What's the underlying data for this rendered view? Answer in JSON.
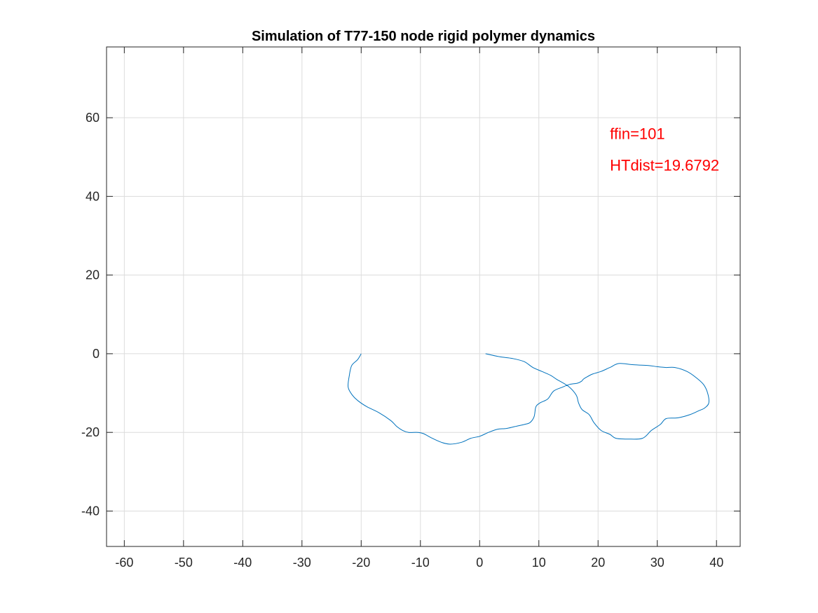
{
  "chart_data": {
    "type": "line",
    "title": "Simulation of T77-150 node rigid polymer dynamics",
    "xlabel": "",
    "ylabel": "",
    "xlim": [
      -63,
      44
    ],
    "ylim": [
      -49,
      78
    ],
    "xticks": [
      -60,
      -50,
      -40,
      -30,
      -20,
      -10,
      0,
      10,
      20,
      30,
      40
    ],
    "yticks": [
      -40,
      -20,
      0,
      20,
      40,
      60
    ],
    "xtick_labels": [
      "-60",
      "-50",
      "-40",
      "-30",
      "-20",
      "-10",
      "0",
      "10",
      "20",
      "30",
      "40"
    ],
    "ytick_labels": [
      "-40",
      "-20",
      "0",
      "20",
      "40",
      "60"
    ],
    "grid": true,
    "line_color": "#0072bd",
    "annotations": [
      {
        "text": "ffin=101",
        "x": 22,
        "y": 56,
        "color": "#ff0000"
      },
      {
        "text": "HTdist=19.6792",
        "x": 22,
        "y": 48,
        "color": "#ff0000"
      }
    ],
    "series": [
      {
        "x": [
          -20,
          -20.6,
          -21.6,
          -22,
          -22.2,
          -21.5,
          -20.5,
          -19,
          -17,
          -15,
          -14,
          -13,
          -12,
          -10.5,
          -9.5,
          -8,
          -6.5,
          -5,
          -3,
          -1.5,
          0,
          1.5,
          3,
          4.5,
          6,
          7.5,
          8.5,
          9.2,
          9.5,
          10.2,
          11.5,
          12.5,
          14,
          15.2,
          16.5,
          17.2,
          17.5,
          18,
          19,
          20.5,
          22,
          23.5,
          26,
          28.5,
          30,
          31.5,
          33,
          35,
          36.5,
          37.8,
          38.5,
          38.7,
          38,
          37,
          35.5,
          33.5,
          31.5,
          30.5,
          29,
          27.5,
          25,
          23,
          22,
          20.5,
          19.3,
          18.5,
          17.3,
          16.7,
          16.3,
          15,
          13,
          12,
          10.5,
          9,
          7.5,
          5.5,
          3.5,
          1
        ],
        "y": [
          0,
          -1.5,
          -3,
          -5.5,
          -8.5,
          -10.5,
          -12,
          -13.5,
          -15,
          -17,
          -18.5,
          -19.5,
          -20,
          -20,
          -20.3,
          -21.5,
          -22.5,
          -23,
          -22.5,
          -21.5,
          -21,
          -20,
          -19.2,
          -19,
          -18.5,
          -18,
          -17.5,
          -16,
          -13.5,
          -12.5,
          -11.5,
          -9.5,
          -8.5,
          -7.8,
          -7.5,
          -7,
          -6.5,
          -6,
          -5.2,
          -4.5,
          -3.5,
          -2.5,
          -2.8,
          -3,
          -3.3,
          -3.5,
          -3.5,
          -4.5,
          -6,
          -7.8,
          -10,
          -12.5,
          -13.8,
          -14.5,
          -15.5,
          -16.3,
          -16.5,
          -18,
          -19.5,
          -21.5,
          -21.7,
          -21.5,
          -20.5,
          -19.5,
          -17.5,
          -15.5,
          -14.2,
          -12.5,
          -10.5,
          -8.3,
          -6.5,
          -5.5,
          -4.5,
          -3.5,
          -2,
          -1.2,
          -0.8,
          0
        ]
      }
    ]
  }
}
